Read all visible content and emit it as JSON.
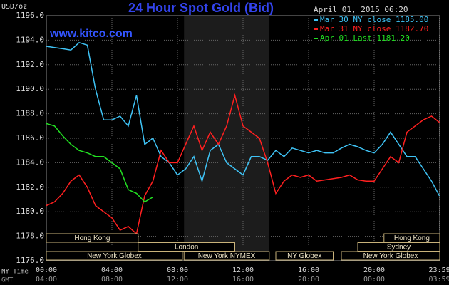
{
  "chart_data": {
    "type": "line",
    "title": "24 Hour Spot Gold (Bid)",
    "site": "www.kitco.com",
    "unit_label": "USD/oz",
    "timestamp": "April 01, 2015 06:20",
    "x_axis_labels": [
      "NY Time",
      "GMT"
    ],
    "x": [
      0,
      0.5,
      1,
      1.5,
      2,
      2.5,
      3,
      3.5,
      4,
      4.5,
      5,
      5.5,
      6,
      6.5,
      7,
      7.5,
      8,
      8.5,
      9,
      9.5,
      10,
      10.5,
      11,
      11.5,
      12,
      12.5,
      13,
      13.5,
      14,
      14.5,
      15,
      15.5,
      16,
      16.5,
      17,
      17.5,
      18,
      18.5,
      19,
      19.5,
      20,
      20.5,
      21,
      21.5,
      22,
      22.5,
      23,
      23.5,
      23.98
    ],
    "series": [
      {
        "name": "Mar 30 NY close 1185.00",
        "color": "#3fc3f5",
        "values": [
          1193.5,
          1193.4,
          1193.3,
          1193.2,
          1193.8,
          1193.6,
          1190,
          1187.5,
          1187.5,
          1187.8,
          1187,
          1189.5,
          1185.5,
          1186,
          1184.5,
          1184,
          1183,
          1183.5,
          1184.5,
          1182.5,
          1185,
          1185.5,
          1184,
          1183.5,
          1183,
          1184.5,
          1184.5,
          1184.2,
          1185,
          1184.5,
          1185.2,
          1185,
          1184.8,
          1185,
          1184.8,
          1184.8,
          1185.2,
          1185.5,
          1185.3,
          1185,
          1184.8,
          1185.5,
          1186.5,
          1185.5,
          1184.5,
          1184.5,
          1183.5,
          1182.5,
          1181.3
        ]
      },
      {
        "name": "Mar 31 NY close 1182.70",
        "color": "#ff2020",
        "values": [
          1180.5,
          1180.8,
          1181.5,
          1182.5,
          1183,
          1182,
          1180.5,
          1180,
          1179.5,
          1178.5,
          1178.8,
          1178.2,
          1181.3,
          1182.5,
          1185,
          1184,
          1184,
          1185.5,
          1187,
          1185,
          1186.5,
          1185.5,
          1187,
          1189.5,
          1187,
          1186.5,
          1186,
          1184,
          1181.5,
          1182.5,
          1183,
          1182.8,
          1183,
          1182.5,
          1182.6,
          1182.7,
          1182.8,
          1183,
          1182.6,
          1182.5,
          1182.5,
          1183.5,
          1184.5,
          1184,
          1186.5,
          1187,
          1187.5,
          1187.8,
          1187.3
        ]
      },
      {
        "name": "Apr 01 Last 1181.20",
        "color": "#22e022",
        "values": [
          1187.2,
          1187,
          1186.2,
          1185.5,
          1185,
          1184.8,
          1184.5,
          1184.5,
          1184,
          1183.5,
          1181.8,
          1181.5,
          1180.8,
          1181.2,
          null,
          null,
          null,
          null,
          null,
          null,
          null,
          null,
          null,
          null,
          null,
          null,
          null,
          null,
          null,
          null,
          null,
          null,
          null,
          null,
          null,
          null,
          null,
          null,
          null,
          null,
          null,
          null,
          null,
          null,
          null,
          null,
          null,
          null,
          null
        ]
      }
    ],
    "xlim": [
      0,
      24
    ],
    "xticks": [
      {
        "value": 0,
        "label": "00:00"
      },
      {
        "value": 4,
        "label": "04:00"
      },
      {
        "value": 8,
        "label": "08:00"
      },
      {
        "value": 12,
        "label": "12:00"
      },
      {
        "value": 16,
        "label": "16:00"
      },
      {
        "value": 20,
        "label": "20:00"
      },
      {
        "value": 23.98,
        "label": "23:59"
      }
    ],
    "gmt_tick_labels": [
      "04:00",
      "08:00",
      "12:00",
      "16:00",
      "20:00",
      "00:00",
      "03:59"
    ],
    "ylim": [
      1176,
      1196
    ],
    "yticks": [
      {
        "value": 1176,
        "label": "1176.0"
      },
      {
        "value": 1178,
        "label": "1178.0"
      },
      {
        "value": 1180,
        "label": "1180.0"
      },
      {
        "value": 1182,
        "label": "1182.0"
      },
      {
        "value": 1184,
        "label": "1184.0"
      },
      {
        "value": 1186,
        "label": "1186.0"
      },
      {
        "value": 1188,
        "label": "1188.0"
      },
      {
        "value": 1190,
        "label": "1190.0"
      },
      {
        "value": 1192,
        "label": "1192.0"
      },
      {
        "value": 1194,
        "label": "1194.0"
      },
      {
        "value": 1196,
        "label": "1196.0"
      }
    ],
    "grid": true,
    "highlight_x": [
      8.4,
      13.6
    ],
    "session_rows": [
      [
        {
          "label": "Hong Kong",
          "start": 0,
          "end": 5.6
        },
        {
          "label": "Hong Kong",
          "start": 20.6,
          "end": 24
        }
      ],
      [
        {
          "label": "London",
          "start": 5.6,
          "end": 11.5
        },
        {
          "label": "Sydney",
          "start": 19,
          "end": 24
        }
      ],
      [
        {
          "label": "New York Globex",
          "start": 0,
          "end": 8.3
        },
        {
          "label": "New York NYMEX",
          "start": 8.4,
          "end": 13.6
        },
        {
          "label": "NY Globex",
          "start": 14,
          "end": 17.5
        },
        {
          "label": "New York Globex",
          "start": 18,
          "end": 24
        }
      ]
    ]
  }
}
